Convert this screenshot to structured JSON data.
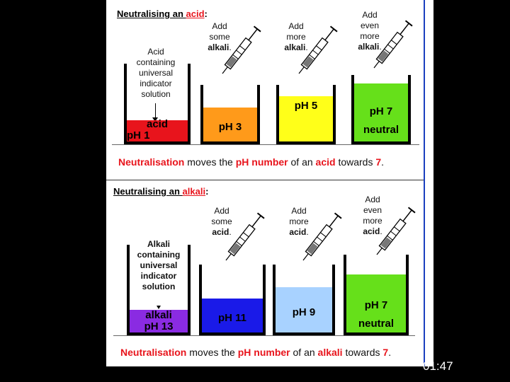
{
  "acid_panel": {
    "title_prefix": "Neutralising an ",
    "title_highlight": "acid",
    "title_suffix": ":",
    "start_description": "Acid containing universal indicator solution",
    "start_label_line1": "acid",
    "start_label_line2": "pH 1",
    "steps": [
      {
        "line1": "Add",
        "line2": "some",
        "line3": "alkali",
        "punct": ".",
        "level_label_1": "pH 3",
        "level_label_2": ""
      },
      {
        "line1": "Add",
        "line2": "more",
        "line3": "alkali",
        "punct": ".",
        "level_label_1": "pH 5",
        "level_label_2": ""
      },
      {
        "line1": "Add",
        "line2": "even",
        "line3": "more",
        "line4": "alkali",
        "punct": ".",
        "level_label_1": "pH 7",
        "level_label_2": "neutral"
      }
    ],
    "caption_start": "Neutralisation",
    "caption_mid1": " moves the ",
    "caption_ph": "pH number",
    "caption_mid2": " of an ",
    "caption_subject": "acid",
    "caption_mid3": " towards ",
    "caption_target": "7",
    "caption_end": "."
  },
  "alkali_panel": {
    "title_prefix": "Neutralising an ",
    "title_highlight": "alkali",
    "title_suffix": ":",
    "start_description": "Alkali containing universal indicator solution",
    "start_label_line1": "alkali",
    "start_label_line2": "pH 13",
    "steps": [
      {
        "line1": "Add",
        "line2": "some",
        "line3": "acid",
        "punct": ".",
        "level_label_1": "pH 11",
        "level_label_2": ""
      },
      {
        "line1": "Add",
        "line2": "more",
        "line3": "acid",
        "punct": ".",
        "level_label_1": "pH 9",
        "level_label_2": ""
      },
      {
        "line1": "Add",
        "line2": "even",
        "line3": "more",
        "line4": "acid",
        "punct": ".",
        "level_label_1": "pH 7",
        "level_label_2": "neutral"
      }
    ],
    "caption_start": "Neutralisation",
    "caption_mid1": " moves the ",
    "caption_ph": "pH number",
    "caption_mid2": " of an ",
    "caption_subject": "alkali",
    "caption_mid3": " towards ",
    "caption_target": "7",
    "caption_end": "."
  },
  "colors": {
    "ph1": "#e8141c",
    "ph3": "#ff9a1a",
    "ph5": "#ffff19",
    "ph7": "#66e01a",
    "ph13": "#8a2be2",
    "ph11": "#1a1ae8",
    "ph9": "#a8d2ff",
    "accent_red": "#e8141c"
  },
  "timer": "01:47"
}
